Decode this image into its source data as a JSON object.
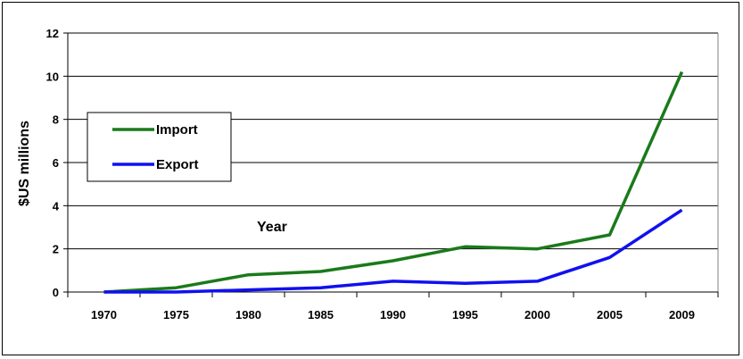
{
  "chart_data": {
    "type": "line",
    "title": "",
    "xlabel": "",
    "ylabel": "$US millions",
    "annotation": "Year",
    "x": [
      "1970",
      "1975",
      "1980",
      "1985",
      "1990",
      "1995",
      "2000",
      "2005",
      "2009"
    ],
    "ylim": [
      0,
      12
    ],
    "yticks": [
      0,
      2,
      4,
      6,
      8,
      10,
      12
    ],
    "grid": true,
    "legend_position": "left",
    "series": [
      {
        "name": "Import",
        "color": "#1a7a1a",
        "values": [
          0.0,
          0.2,
          0.8,
          0.95,
          1.45,
          2.1,
          2.0,
          2.65,
          10.2
        ]
      },
      {
        "name": "Export",
        "color": "#1010f0",
        "values": [
          0.0,
          0.0,
          0.1,
          0.2,
          0.5,
          0.4,
          0.5,
          1.6,
          3.8
        ]
      }
    ]
  }
}
